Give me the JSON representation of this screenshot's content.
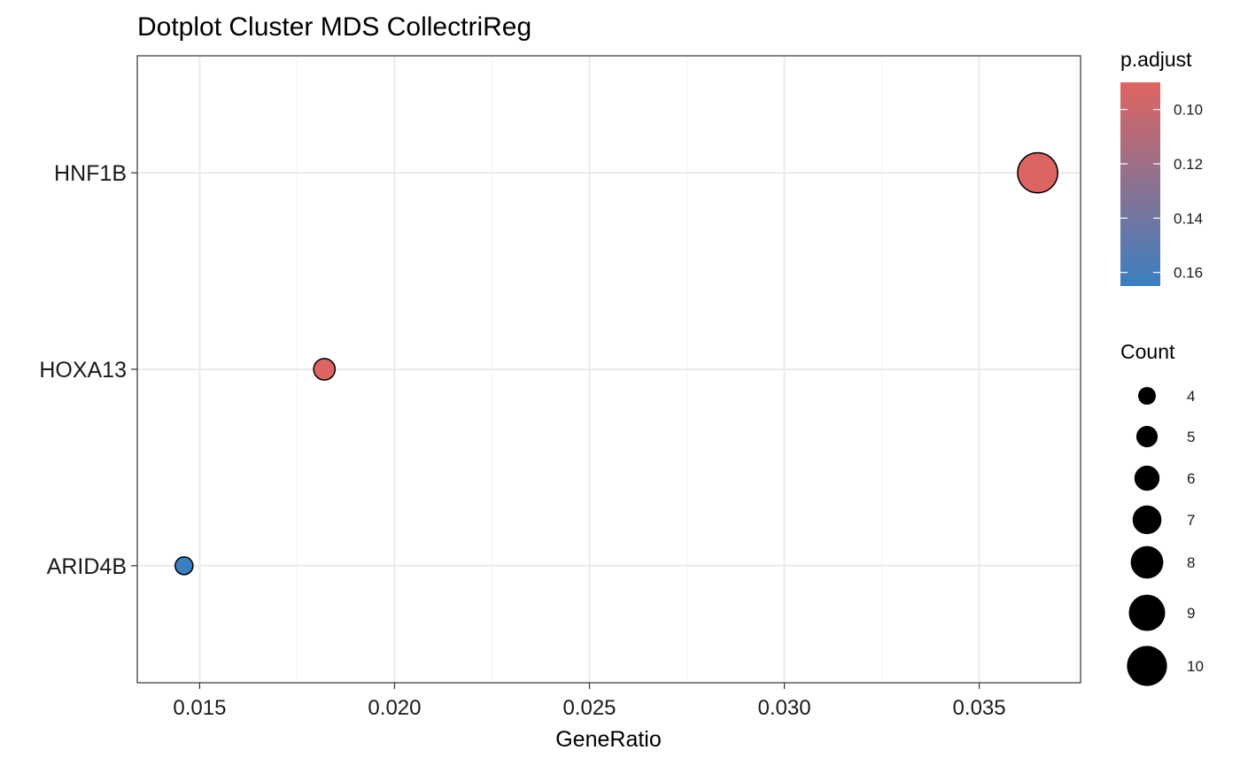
{
  "chart_data": {
    "type": "scatter",
    "title": "Dotplot Cluster MDS CollectriReg",
    "xlabel": "GeneRatio",
    "ylabel": "",
    "xlim": [
      0.0134,
      0.0376
    ],
    "x_ticks": [
      0.015,
      0.02,
      0.025,
      0.03,
      0.035
    ],
    "x_tick_labels": [
      "0.015",
      "0.020",
      "0.025",
      "0.030",
      "0.035"
    ],
    "categories": [
      "HNF1B",
      "HOXA13",
      "ARID4B"
    ],
    "grid": true,
    "points": [
      {
        "label": "HNF1B",
        "x": 0.0365,
        "count": 10,
        "p_adjust": 0.092
      },
      {
        "label": "HOXA13",
        "x": 0.0182,
        "count": 5,
        "p_adjust": 0.092
      },
      {
        "label": "ARID4B",
        "x": 0.0146,
        "count": 4,
        "p_adjust": 0.165
      }
    ],
    "color_legend": {
      "title": "p.adjust",
      "range": [
        0.09,
        0.165
      ],
      "ticks": [
        0.1,
        0.12,
        0.14,
        0.16
      ],
      "tick_labels": [
        "0.10",
        "0.12",
        "0.14",
        "0.16"
      ],
      "low_color": "#e0645f",
      "high_color": "#3a7fc1"
    },
    "size_legend": {
      "title": "Count",
      "values": [
        4,
        5,
        6,
        7,
        8,
        9,
        10
      ],
      "labels": [
        "4",
        "5",
        "6",
        "7",
        "8",
        "9",
        "10"
      ]
    },
    "legend_position": "right"
  }
}
